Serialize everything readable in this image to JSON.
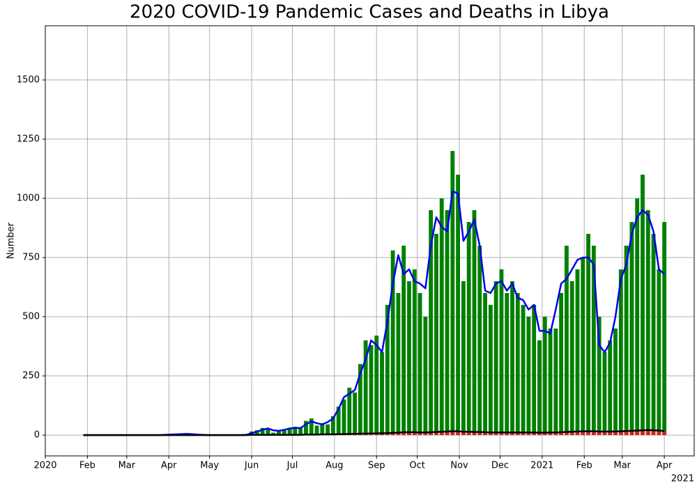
{
  "chart_data": {
    "type": "bar-line",
    "title": "2020 COVID-19 Pandemic Cases and Deaths in Libya",
    "y_label": "Number",
    "offset_label": "2021",
    "x": [
      "2020-01-29",
      "2020-02-02",
      "2020-02-06",
      "2020-02-10",
      "2020-02-14",
      "2020-02-18",
      "2020-02-22",
      "2020-02-26",
      "2020-03-01",
      "2020-03-05",
      "2020-03-09",
      "2020-03-13",
      "2020-03-17",
      "2020-03-21",
      "2020-03-25",
      "2020-03-29",
      "2020-04-02",
      "2020-04-06",
      "2020-04-10",
      "2020-04-14",
      "2020-04-18",
      "2020-04-22",
      "2020-04-26",
      "2020-04-30",
      "2020-05-04",
      "2020-05-08",
      "2020-05-12",
      "2020-05-16",
      "2020-05-20",
      "2020-05-24",
      "2020-05-28",
      "2020-06-01",
      "2020-06-05",
      "2020-06-09",
      "2020-06-13",
      "2020-06-17",
      "2020-06-21",
      "2020-06-25",
      "2020-06-29",
      "2020-07-03",
      "2020-07-07",
      "2020-07-11",
      "2020-07-15",
      "2020-07-19",
      "2020-07-23",
      "2020-07-27",
      "2020-07-31",
      "2020-08-04",
      "2020-08-08",
      "2020-08-12",
      "2020-08-16",
      "2020-08-20",
      "2020-08-24",
      "2020-08-28",
      "2020-09-01",
      "2020-09-05",
      "2020-09-09",
      "2020-09-13",
      "2020-09-17",
      "2020-09-21",
      "2020-09-25",
      "2020-09-29",
      "2020-10-03",
      "2020-10-07",
      "2020-10-11",
      "2020-10-15",
      "2020-10-19",
      "2020-10-23",
      "2020-10-27",
      "2020-10-31",
      "2020-11-04",
      "2020-11-08",
      "2020-11-12",
      "2020-11-16",
      "2020-11-20",
      "2020-11-24",
      "2020-11-28",
      "2020-12-02",
      "2020-12-06",
      "2020-12-10",
      "2020-12-14",
      "2020-12-18",
      "2020-12-22",
      "2020-12-26",
      "2020-12-30",
      "2021-01-03",
      "2021-01-07",
      "2021-01-11",
      "2021-01-15",
      "2021-01-19",
      "2021-01-23",
      "2021-01-27",
      "2021-01-31",
      "2021-02-04",
      "2021-02-08",
      "2021-02-12",
      "2021-02-16",
      "2021-02-20",
      "2021-02-24",
      "2021-02-28",
      "2021-03-04",
      "2021-03-08",
      "2021-03-12",
      "2021-03-16",
      "2021-03-20",
      "2021-03-24",
      "2021-03-28",
      "2021-04-01"
    ],
    "series": [
      {
        "kind": "bar",
        "color": "#008000",
        "values": [
          0,
          0,
          0,
          0,
          0,
          0,
          0,
          0,
          0,
          0,
          0,
          0,
          0,
          0,
          1,
          2,
          3,
          2,
          5,
          8,
          2,
          1,
          0,
          0,
          0,
          0,
          0,
          0,
          0,
          0,
          2,
          15,
          20,
          30,
          25,
          10,
          15,
          20,
          30,
          35,
          30,
          60,
          70,
          40,
          50,
          45,
          80,
          120,
          150,
          200,
          180,
          300,
          400,
          380,
          420,
          350,
          550,
          780,
          600,
          800,
          650,
          700,
          600,
          500,
          950,
          850,
          1000,
          950,
          1200,
          1100,
          650,
          900,
          950,
          800,
          600,
          550,
          650,
          700,
          600,
          650,
          600,
          550,
          500,
          550,
          400,
          500,
          450,
          450,
          600,
          800,
          650,
          700,
          750,
          850,
          800,
          500,
          350,
          400,
          450,
          700,
          800,
          900,
          1000,
          1100,
          950,
          850,
          700,
          900
        ]
      },
      {
        "kind": "bar",
        "color": "#d62020",
        "values": [
          0,
          0,
          0,
          0,
          0,
          0,
          0,
          0,
          0,
          0,
          0,
          0,
          0,
          0,
          0,
          0,
          0,
          0,
          0,
          0,
          0,
          0,
          0,
          0,
          0,
          0,
          0,
          0,
          0,
          0,
          0,
          1,
          1,
          1,
          1,
          1,
          1,
          1,
          1,
          1,
          2,
          2,
          2,
          3,
          3,
          3,
          3,
          4,
          5,
          5,
          6,
          6,
          7,
          8,
          8,
          8,
          9,
          10,
          12,
          15,
          14,
          13,
          12,
          10,
          15,
          16,
          17,
          16,
          18,
          20,
          12,
          14,
          15,
          14,
          12,
          10,
          12,
          10,
          11,
          12,
          13,
          10,
          12,
          11,
          10,
          10,
          11,
          12,
          13,
          14,
          15,
          16,
          17,
          18,
          16,
          15,
          14,
          15,
          16,
          17,
          18,
          20,
          22,
          25,
          24,
          22,
          20,
          15
        ]
      },
      {
        "kind": "line",
        "color": "#0000ee",
        "values": [
          0,
          0,
          0,
          0,
          0,
          0,
          0,
          0,
          0,
          0,
          0,
          0,
          0,
          0,
          0,
          1,
          2,
          3,
          4,
          5,
          4,
          2,
          1,
          0,
          0,
          0,
          0,
          0,
          0,
          0,
          1,
          8,
          15,
          22,
          28,
          20,
          18,
          22,
          28,
          30,
          30,
          45,
          58,
          50,
          45,
          55,
          70,
          110,
          160,
          175,
          190,
          260,
          320,
          400,
          380,
          350,
          480,
          640,
          760,
          680,
          700,
          650,
          640,
          620,
          800,
          920,
          880,
          860,
          1030,
          1020,
          820,
          860,
          910,
          800,
          610,
          600,
          640,
          650,
          610,
          640,
          580,
          570,
          530,
          550,
          440,
          440,
          430,
          530,
          640,
          660,
          700,
          740,
          750,
          750,
          720,
          380,
          350,
          390,
          500,
          660,
          720,
          850,
          920,
          950,
          930,
          860,
          700,
          680
        ]
      },
      {
        "kind": "line",
        "color": "#000000",
        "values": [
          0,
          0,
          0,
          0,
          0,
          0,
          0,
          0,
          0,
          0,
          0,
          0,
          0,
          0,
          0,
          0,
          0,
          0,
          0,
          0,
          0,
          0,
          0,
          0,
          0,
          0,
          0,
          0,
          0,
          0,
          0,
          1,
          1,
          1,
          1,
          1,
          1,
          1,
          1,
          1,
          1,
          2,
          2,
          2,
          3,
          3,
          3,
          4,
          4,
          5,
          5,
          6,
          6,
          7,
          7,
          8,
          8,
          9,
          10,
          12,
          12,
          12,
          11,
          11,
          12,
          13,
          14,
          15,
          16,
          16,
          14,
          14,
          13,
          13,
          12,
          11,
          11,
          11,
          11,
          11,
          11,
          11,
          11,
          11,
          10,
          10,
          11,
          11,
          12,
          13,
          14,
          15,
          16,
          16,
          16,
          15,
          15,
          15,
          15,
          16,
          17,
          18,
          19,
          20,
          21,
          20,
          19,
          17
        ]
      }
    ],
    "xlim": [
      "2020-01-01",
      "2021-04-23"
    ],
    "xticks": [
      {
        "value": "2020-01-01",
        "label": "2020"
      },
      {
        "value": "2020-02-01",
        "label": "Feb"
      },
      {
        "value": "2020-03-01",
        "label": "Mar"
      },
      {
        "value": "2020-04-01",
        "label": "Apr"
      },
      {
        "value": "2020-05-01",
        "label": "May"
      },
      {
        "value": "2020-06-01",
        "label": "Jun"
      },
      {
        "value": "2020-07-01",
        "label": "Jul"
      },
      {
        "value": "2020-08-01",
        "label": "Aug"
      },
      {
        "value": "2020-09-01",
        "label": "Sep"
      },
      {
        "value": "2020-10-01",
        "label": "Oct"
      },
      {
        "value": "2020-11-01",
        "label": "Nov"
      },
      {
        "value": "2020-12-01",
        "label": "Dec"
      },
      {
        "value": "2021-01-01",
        "label": "2021"
      },
      {
        "value": "2021-02-01",
        "label": "Feb"
      },
      {
        "value": "2021-03-01",
        "label": "Mar"
      },
      {
        "value": "2021-04-01",
        "label": "Apr"
      }
    ],
    "ylim": [
      -88,
      1729
    ],
    "yticks": [
      0,
      250,
      500,
      750,
      1000,
      1250,
      1500
    ],
    "grid": true
  }
}
